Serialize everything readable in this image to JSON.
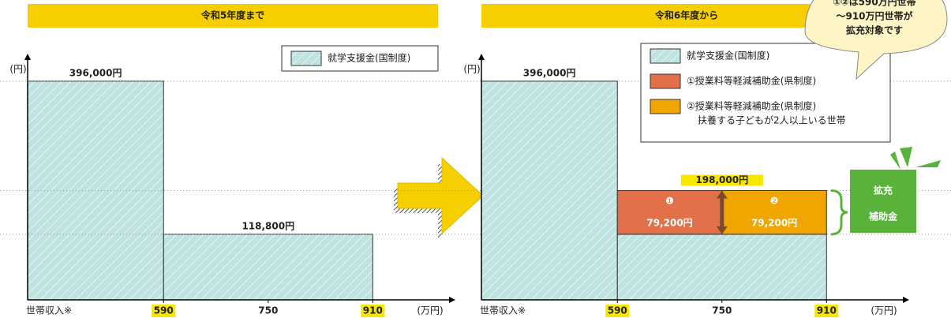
{
  "chart_data": [
    {
      "type": "step-bar",
      "title": "令和5年度まで",
      "y_unit": "(円)",
      "x_unit": "(万円)",
      "x_start_label": "世帯収入※",
      "xlim": [
        382,
        1034
      ],
      "ylim": [
        0,
        443000
      ],
      "xticks": [
        590,
        750,
        910
      ],
      "xtick_highlight": [
        true,
        false,
        true
      ],
      "bins": [
        590,
        910
      ],
      "grid": false,
      "series": [
        {
          "name": "就学支援金(国制度)",
          "color": "#bfe3e0",
          "hatch": true,
          "values": [
            396000,
            118800
          ],
          "value_labels": [
            "396,000円",
            "118,800円"
          ]
        }
      ]
    },
    {
      "type": "step-bar",
      "title": "令和6年度から",
      "y_unit": "(円)",
      "x_unit": "(万円)",
      "x_start_label": "世帯収入※",
      "xlim": [
        382,
        1034
      ],
      "ylim": [
        0,
        443000
      ],
      "xticks": [
        590,
        750,
        910
      ],
      "xtick_highlight": [
        true,
        false,
        true
      ],
      "bins": [
        590,
        910
      ],
      "grid": true,
      "series": [
        {
          "name": "就学支援金(国制度)",
          "color": "#bfe3e0",
          "hatch": true,
          "values": [
            396000,
            118800
          ],
          "value_labels": [
            "396,000円",
            null
          ]
        },
        {
          "name": "①授業料等軽減補助金(県制度)",
          "color": "#e2714a",
          "marker": "❶",
          "values": [
            null,
            79200
          ],
          "value_labels": [
            null,
            "79,200円"
          ]
        },
        {
          "name": "②授業料等軽減補助金(県制度)",
          "name_note": "扶養する子どもが2人以上いる世帯",
          "color": "#f0a500",
          "marker": "❷",
          "values": [
            null,
            79200
          ],
          "value_labels": [
            null,
            "79,200円"
          ]
        }
      ],
      "total": {
        "value": 198000,
        "label": "198,000円"
      },
      "callout": [
        "①②は590万円世帯",
        "～910万円世帯が",
        "拡充対象です"
      ],
      "badge": [
        "拡充",
        "補助金"
      ]
    }
  ]
}
